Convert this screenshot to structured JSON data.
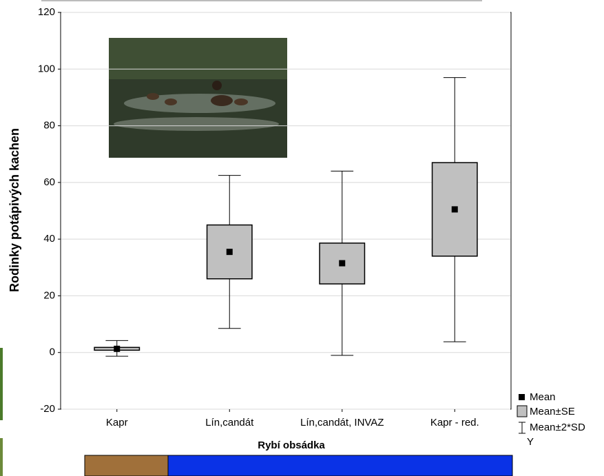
{
  "chart_data": {
    "type": "box",
    "x_label": "Rybí obsádka",
    "y_label": "Rodinky potápivých kachen",
    "categories": [
      "Kapr",
      "Lín,candát",
      "Lín,candát, INVAZ",
      "Kapr - red."
    ],
    "series": [
      {
        "name": "Mean",
        "color": "#000000",
        "values": [
          1.3,
          35.5,
          31.5,
          50.5
        ]
      },
      {
        "name": "Mean±SE",
        "color": "#c0c0c0",
        "low": [
          0.8,
          26,
          24.2,
          34
        ],
        "high": [
          1.8,
          45,
          38.6,
          67
        ]
      },
      {
        "name": "Mean±2*SD",
        "color": "#000000",
        "low": [
          -1.3,
          8.5,
          -1,
          3.8
        ],
        "high": [
          4.2,
          62.5,
          64,
          97
        ]
      }
    ],
    "legend_caption": "Y",
    "ylim": [
      -20,
      120
    ],
    "yticks": [
      -20,
      0,
      20,
      40,
      60,
      80,
      100,
      120
    ],
    "grid": true,
    "legend_position": "bottom-right"
  }
}
